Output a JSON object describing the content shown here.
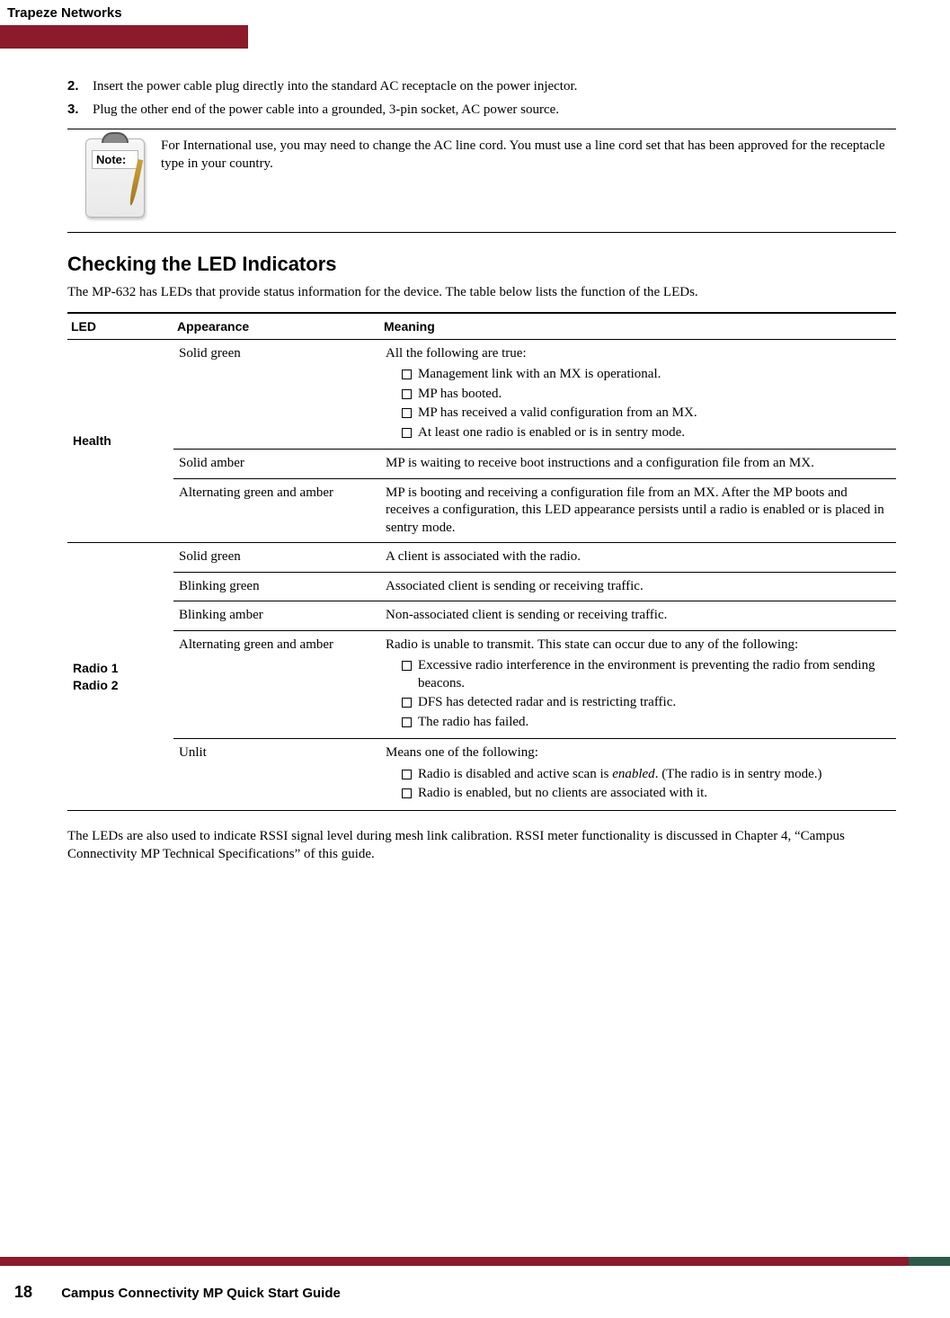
{
  "brand": "Trapeze Networks",
  "steps": [
    {
      "num": "2.",
      "text": "Insert the power cable plug directly into the standard AC receptacle on the power injector."
    },
    {
      "num": "3.",
      "text": "Plug the other end of the power cable into a grounded, 3-pin socket, AC power source."
    }
  ],
  "note": {
    "label": "Note:",
    "text": "For International use, you may need to change the AC line cord. You must use a line cord set that has been approved for the receptacle type in your country."
  },
  "section_title": "Checking the LED Indicators",
  "section_intro": "The MP-632 has LEDs that provide status information for the device. The table below lists the function of the LEDs.",
  "table": {
    "headers": {
      "led": "LED",
      "appearance": "Appearance",
      "meaning": "Meaning"
    },
    "groups": [
      {
        "led": "Health",
        "rows": [
          {
            "appearance": "Solid green",
            "meaning_lead": "All the following are true:",
            "bullets": [
              "Management link with an MX is operational.",
              "MP has booted.",
              "MP has received a valid configuration from an MX.",
              "At least one radio is enabled or is in sentry mode."
            ]
          },
          {
            "appearance": "Solid amber",
            "meaning_lead": "MP is waiting to receive boot instructions and a configuration file from an MX.",
            "bullets": []
          },
          {
            "appearance": "Alternating green and amber",
            "meaning_lead": "MP is booting and receiving a configuration file from an MX. After the MP boots and receives a configuration, this LED appearance persists until a radio is enabled or is placed in sentry mode.",
            "bullets": []
          }
        ]
      },
      {
        "led": "Radio 1\nRadio 2",
        "rows": [
          {
            "appearance": "Solid green",
            "meaning_lead": "A client is associated with the radio.",
            "bullets": []
          },
          {
            "appearance": "Blinking green",
            "meaning_lead": "Associated client is sending or receiving traffic.",
            "bullets": []
          },
          {
            "appearance": "Blinking amber",
            "meaning_lead": "Non-associated client is sending or receiving traffic.",
            "bullets": []
          },
          {
            "appearance": "Alternating green and amber",
            "meaning_lead": "Radio is unable to transmit. This state can occur due to any of the following:",
            "bullets": [
              "Excessive radio interference in the environment is preventing the radio from sending beacons.",
              "DFS has detected radar and is restricting traffic.",
              "The radio has failed."
            ]
          },
          {
            "appearance": "Unlit",
            "meaning_lead": "Means one of the following:",
            "bullets_html": [
              "Radio is disabled and active scan is <em class='i'>enabled</em>. (The radio is in sentry mode.)",
              "Radio is enabled, but no clients are associated with it."
            ]
          }
        ]
      }
    ]
  },
  "after_table": "The LEDs are also used to indicate RSSI signal level during mesh link calibration. RSSI meter functionality is discussed in Chapter 4, “Campus Connectivity MP Technical Specifications” of this guide.",
  "footer": {
    "page": "18",
    "title": "Campus Connectivity MP Quick Start Guide"
  }
}
